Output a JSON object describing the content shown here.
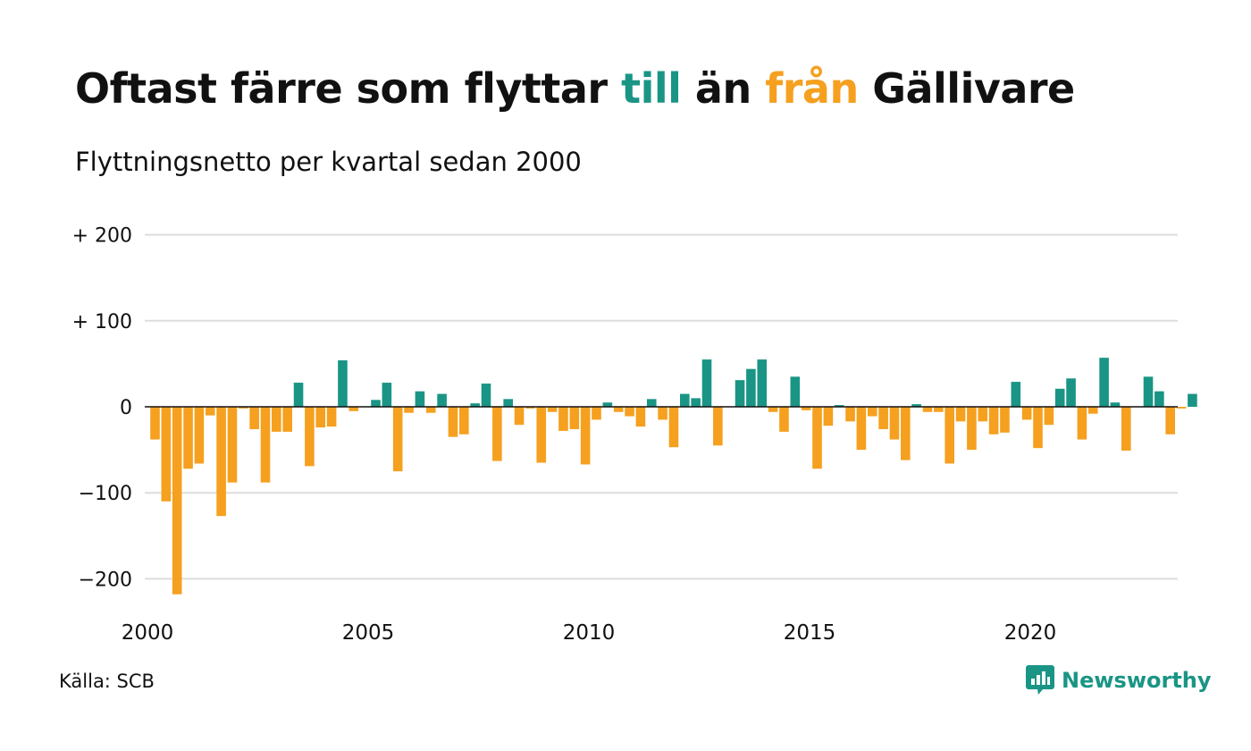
{
  "title": {
    "part1": "Oftast färre som flyttar ",
    "part2": "till",
    "part3": " än ",
    "part4": "från",
    "part5": " Gällivare"
  },
  "subtitle": "Flyttningsnetto per kvartal sedan 2000",
  "source": "Källa: SCB",
  "brand": {
    "name": "Newsworthy",
    "icon": "newsworthy-logo-icon"
  },
  "colors": {
    "positive": "#1a9585",
    "negative": "#f5a01f",
    "grid": "#dddddd",
    "text": "#111111"
  },
  "chart_data": {
    "type": "bar",
    "title": "Oftast färre som flyttar till än från Gällivare",
    "subtitle": "Flyttningsnetto per kvartal sedan 2000",
    "xlabel": "",
    "ylabel": "",
    "ylim": [
      -240,
      210
    ],
    "grid": true,
    "yticks": [
      {
        "value": 200,
        "label": "+ 200"
      },
      {
        "value": 100,
        "label": "+ 100"
      },
      {
        "value": 0,
        "label": "0"
      },
      {
        "value": -100,
        "label": "−100"
      },
      {
        "value": -200,
        "label": "−200"
      }
    ],
    "xticks": [
      "2000",
      "2005",
      "2010",
      "2015",
      "2020"
    ],
    "start_year": 2000,
    "start_quarter": 1,
    "values": [
      -38,
      -110,
      -218,
      -72,
      -66,
      -10,
      -127,
      -88,
      -2,
      -26,
      -88,
      -29,
      -29,
      28,
      -69,
      -24,
      -23,
      54,
      -5,
      0,
      8,
      28,
      -75,
      -7,
      18,
      -7,
      15,
      -35,
      -32,
      4,
      27,
      -63,
      9,
      -21,
      -2,
      -65,
      -6,
      -28,
      -26,
      -67,
      -15,
      5,
      -6,
      -11,
      -23,
      9,
      -15,
      -47,
      15,
      10,
      55,
      -45,
      0,
      31,
      44,
      55,
      -6,
      -29,
      35,
      -4,
      -72,
      -22,
      2,
      -17,
      -50,
      -11,
      -26,
      -38,
      -62,
      3,
      -6,
      -6,
      -66,
      -17,
      -50,
      -17,
      -32,
      -30,
      29,
      -15,
      -48,
      -21,
      21,
      33,
      -38,
      -8,
      57,
      5,
      -51,
      0,
      35,
      18,
      -32,
      -2,
      15
    ]
  }
}
